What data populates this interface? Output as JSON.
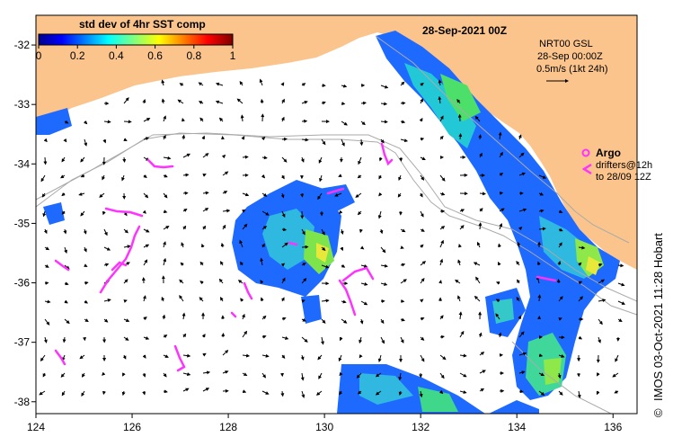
{
  "map": {
    "date_label": "28-Sep-2021 00Z",
    "colorbar": {
      "title": "std dev of 4hr SST comp",
      "ticks": [
        "0",
        "0.2",
        "0.4",
        "0.6",
        "0.8",
        "1"
      ],
      "tick_values": [
        0,
        0.2,
        0.4,
        0.6,
        0.8,
        1
      ],
      "range": [
        0,
        1
      ]
    },
    "current_legend": {
      "line1": "NRT00 GSL",
      "line2": "28-Sep 00:00Z",
      "line3": "0.5m/s (1kt 24h)"
    },
    "argo_legend": {
      "argo_label": "Argo",
      "drifters_line1": "drifters@12h",
      "drifters_line2": "to 28/09 12Z"
    },
    "credit": "IMOS 03-Oct-2021 11:28 Hobart",
    "copyright_symbol": "©",
    "x_axis": {
      "labels": [
        "124",
        "126",
        "128",
        "130",
        "132",
        "134",
        "136"
      ],
      "values": [
        124,
        126,
        128,
        130,
        132,
        134,
        136
      ],
      "range": [
        124,
        136.5
      ]
    },
    "y_axis": {
      "labels": [
        "-32",
        "-33",
        "-34",
        "-35",
        "-36",
        "-37",
        "-38"
      ],
      "values": [
        -32,
        -33,
        -34,
        -35,
        -36,
        -37,
        -38
      ],
      "range": [
        -38.2,
        -31.5
      ]
    },
    "colors": {
      "land": "#fbc48c",
      "ocean": "#ffffff",
      "argo": "#ff33ff",
      "arrow": "#000000",
      "contour": "#aaaaaa"
    }
  }
}
